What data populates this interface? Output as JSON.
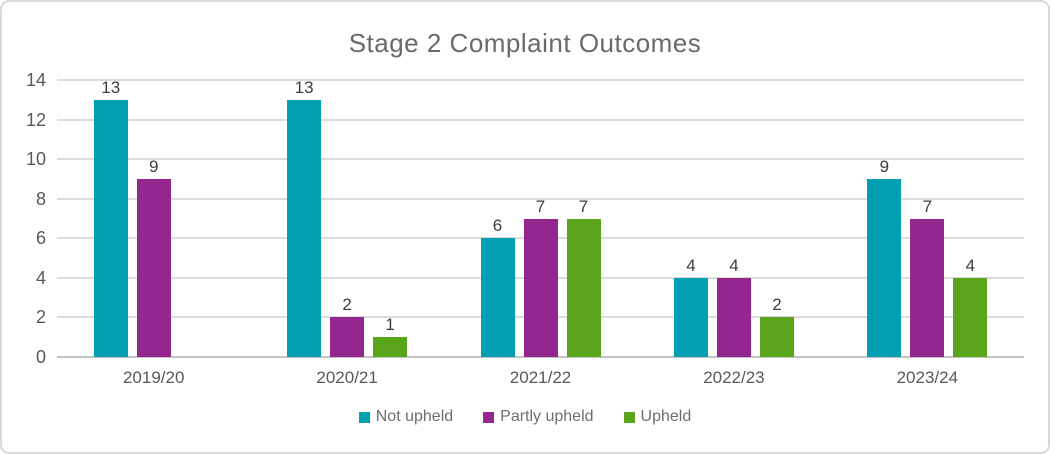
{
  "chart_data": {
    "type": "bar",
    "title": "Stage 2 Complaint Outcomes",
    "categories": [
      "2019/20",
      "2020/21",
      "2021/22",
      "2022/23",
      "2023/24"
    ],
    "series": [
      {
        "name": "Not upheld",
        "color": "#00A0B2",
        "values": [
          13,
          13,
          6,
          4,
          9
        ]
      },
      {
        "name": "Partly upheld",
        "color": "#93278F",
        "values": [
          9,
          2,
          7,
          4,
          7
        ]
      },
      {
        "name": "Upheld",
        "color": "#5BA51D",
        "values": [
          0,
          1,
          7,
          2,
          4
        ]
      }
    ],
    "xlabel": "",
    "ylabel": "",
    "ylim": [
      0,
      14
    ],
    "yticks": [
      0,
      2,
      4,
      6,
      8,
      10,
      12,
      14
    ],
    "grid": true,
    "data_labels": true,
    "zero_values_hidden": true,
    "legend_position": "bottom",
    "styles": {
      "background": "#FFFFFF",
      "frame_border_color": "#D9D9D9",
      "title_color": "#6A6A6A",
      "axis_text_color": "#595959",
      "data_label_color": "#3D3D3D",
      "legend_text_color": "#6E6E6E",
      "gridline_color": "#DCDCDC",
      "baseline_color": "#C4C4C4"
    }
  }
}
